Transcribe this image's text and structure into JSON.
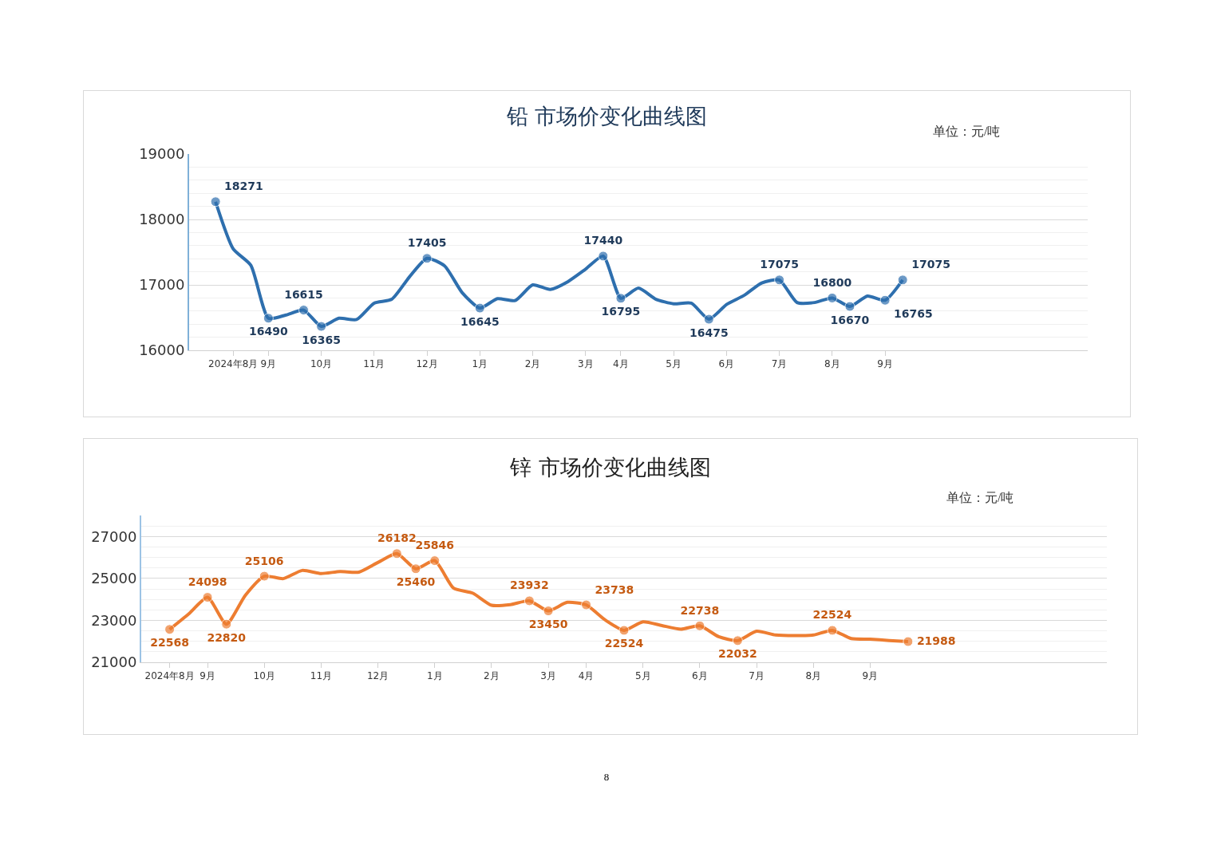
{
  "chart_data": [
    {
      "type": "line",
      "title": "铅 市场价变化曲线图",
      "annotations": [
        "单位：元/吨"
      ],
      "categories": [
        null,
        null,
        "2024年8月",
        null,
        "9月",
        null,
        null,
        "10月",
        null,
        null,
        "11月",
        null,
        null,
        "12月",
        null,
        null,
        "1月",
        null,
        null,
        "2月",
        null,
        null,
        "3月",
        null,
        "4月",
        null,
        null,
        "5月",
        null,
        null,
        "6月",
        null,
        null,
        "7月",
        null,
        null,
        "8月",
        null,
        null,
        "9月",
        null,
        null,
        null,
        null,
        null,
        null,
        null,
        null,
        null,
        null,
        null
      ],
      "series": [
        {
          "color": "#2e6fae",
          "values": [
            null,
            18271,
            17550,
            17300,
            16490,
            16540,
            16615,
            16365,
            16490,
            16470,
            16720,
            16780,
            17120,
            17405,
            17290,
            16880,
            16645,
            16790,
            16760,
            17000,
            16930,
            17050,
            17240,
            17440,
            16795,
            16950,
            16780,
            16710,
            16720,
            16475,
            16700,
            16840,
            17030,
            17075,
            16730,
            16730,
            16800,
            16670,
            16830,
            16765,
            17075,
            null,
            null,
            null,
            null,
            null,
            null,
            null,
            null,
            null,
            null
          ],
          "value_labels": [
            null,
            "18271",
            null,
            null,
            "16490",
            null,
            "16615",
            "16365",
            null,
            null,
            null,
            null,
            null,
            "17405",
            null,
            null,
            "16645",
            null,
            null,
            null,
            null,
            null,
            null,
            "17440",
            "16795",
            null,
            null,
            null,
            null,
            "16475",
            null,
            null,
            null,
            "17075",
            null,
            null,
            "16800",
            "16670",
            null,
            "16765",
            "17075",
            null,
            null,
            null,
            null,
            null,
            null,
            null,
            null,
            null,
            null
          ]
        }
      ],
      "ylim": [
        16000,
        19000
      ],
      "yticks": [
        16000,
        17000,
        18000,
        19000
      ],
      "grid": "y",
      "line_style": "solid"
    },
    {
      "type": "line",
      "title": "锌 市场价变化曲线图",
      "annotations": [
        "单位：元/吨",
        "8"
      ],
      "categories": [
        null,
        "2024年8月",
        null,
        "9月",
        null,
        null,
        "10月",
        null,
        null,
        "11月",
        null,
        null,
        "12月",
        null,
        null,
        "1月",
        null,
        null,
        "2月",
        null,
        null,
        "3月",
        null,
        "4月",
        null,
        null,
        "5月",
        null,
        null,
        "6月",
        null,
        null,
        "7月",
        null,
        null,
        "8月",
        null,
        null,
        "9月",
        null,
        null,
        null,
        null,
        null,
        null,
        null,
        null,
        null,
        null,
        null,
        null
      ],
      "series": [
        {
          "color": "#ed7d31",
          "values": [
            null,
            22568,
            23300,
            24098,
            22820,
            24200,
            25106,
            24990,
            25380,
            25230,
            25330,
            25300,
            25760,
            26182,
            25460,
            25846,
            24530,
            24300,
            23720,
            23750,
            23932,
            23450,
            23860,
            23738,
            23020,
            22524,
            22930,
            22750,
            22580,
            22738,
            22220,
            22032,
            22480,
            22300,
            22270,
            22300,
            22524,
            22130,
            22100,
            22040,
            21988,
            null,
            null,
            null,
            null,
            null,
            null,
            null,
            null,
            null,
            null
          ],
          "value_labels": [
            null,
            "22568",
            null,
            "24098",
            "22820",
            null,
            "25106",
            null,
            null,
            null,
            null,
            null,
            null,
            "26182",
            "25460",
            "25846",
            null,
            null,
            null,
            null,
            "23932",
            "23450",
            null,
            "23738",
            null,
            "22524",
            null,
            null,
            null,
            "22738",
            null,
            "22032",
            null,
            null,
            null,
            null,
            "22524",
            null,
            null,
            null,
            "21988",
            null,
            null,
            null,
            null,
            null,
            null,
            null,
            null,
            null,
            null
          ]
        }
      ],
      "ylim": [
        21000,
        28000
      ],
      "yticks": [
        21000,
        23000,
        25000,
        27000
      ],
      "grid": "y",
      "line_style": "solid"
    }
  ]
}
